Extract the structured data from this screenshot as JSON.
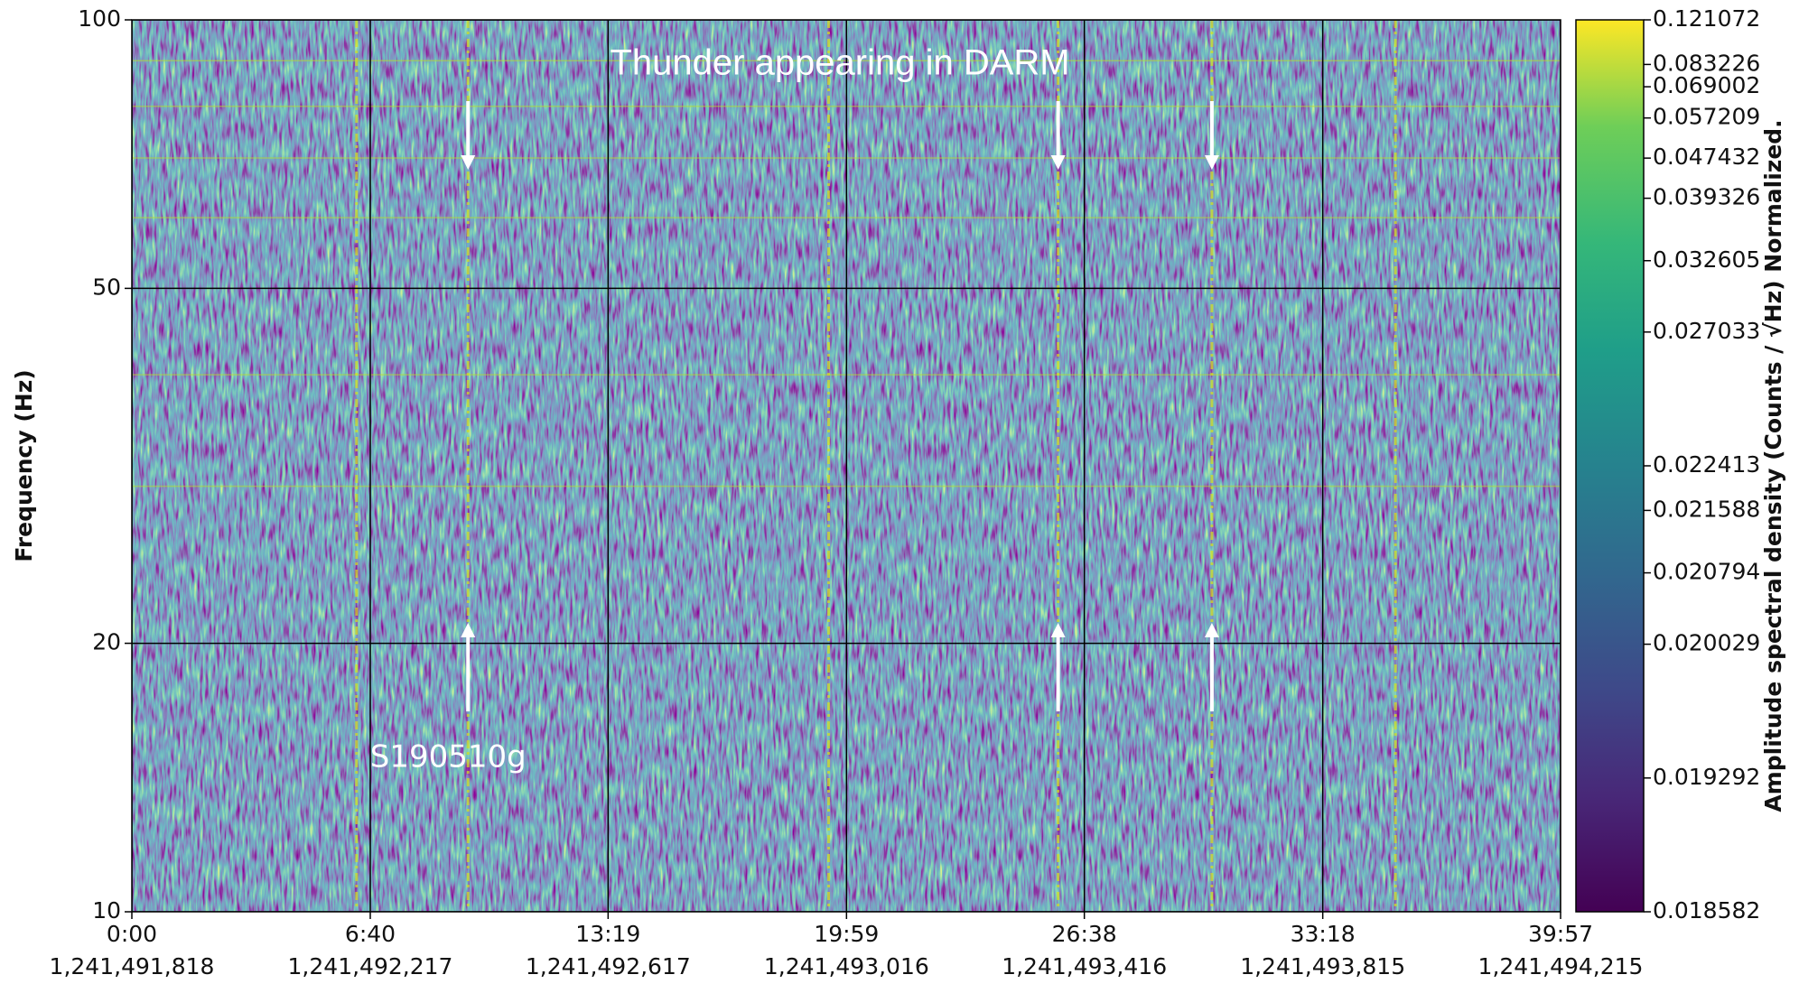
{
  "chart_data": {
    "type": "spectrogram",
    "ylabel": "Frequency (Hz)",
    "yscale": "log",
    "ylim": [
      10,
      100
    ],
    "yticks": [
      10,
      20,
      50,
      100
    ],
    "xlim": [
      0,
      2397
    ],
    "xticks": [
      {
        "value": 0,
        "label": "0:00"
      },
      {
        "value": 400,
        "label": "6:40"
      },
      {
        "value": 799,
        "label": "13:19"
      },
      {
        "value": 1199,
        "label": "19:59"
      },
      {
        "value": 1598,
        "label": "26:38"
      },
      {
        "value": 1998,
        "label": "33:18"
      },
      {
        "value": 2397,
        "label": "39:57"
      }
    ],
    "xtick_sublabels": [
      "1,241,491,818",
      "1,241,492,217",
      "1,241,492,617",
      "1,241,493,016",
      "1,241,493,416",
      "1,241,493,815",
      "1,241,494,215"
    ],
    "grid": true,
    "colormap": "viridis",
    "spectral_lines_hz": [
      30,
      40,
      60,
      70,
      80,
      90
    ],
    "streaks_x": [
      377,
      564,
      1169,
      1554,
      1812,
      2120
    ],
    "thunder": {
      "text": "Thunder appearing in DARM",
      "x": [
        564,
        1554,
        1812
      ]
    },
    "event": {
      "text": "S190510g",
      "x": 564
    },
    "colorbar": {
      "label": "Amplitude spectral density (Counts / √Hz) Normalized.",
      "norm": "quantile",
      "ticks": [
        0.018582,
        0.019292,
        0.020029,
        0.020794,
        0.021588,
        0.022413,
        0.027033,
        0.032605,
        0.039326,
        0.047432,
        0.057209,
        0.069002,
        0.083226,
        0.121072
      ],
      "quantiles": [
        0,
        0.15,
        0.3,
        0.38,
        0.45,
        0.5,
        0.65,
        0.73,
        0.8,
        0.845,
        0.89,
        0.925,
        0.95,
        1
      ]
    }
  }
}
